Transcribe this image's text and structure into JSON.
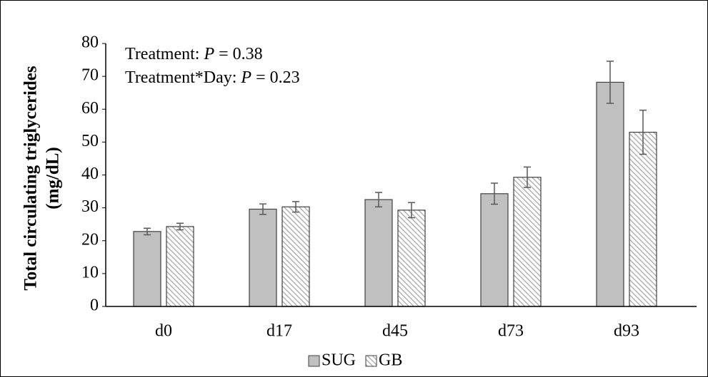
{
  "chart_data": {
    "type": "bar",
    "annotations": [
      {
        "prefix": "Treatment: ",
        "stat": "P",
        "suffix": " = 0.38"
      },
      {
        "prefix": "Treatment*Day: ",
        "stat": "P",
        "suffix": " = 0.23"
      }
    ],
    "y_label": [
      "Total circulating triglycerides",
      "(mg/dL)"
    ],
    "categories": [
      "d0",
      "d17",
      "d45",
      "d73",
      "d93"
    ],
    "series": [
      {
        "name": "SUG",
        "color": "#c0c0c0",
        "hatch": false,
        "values": [
          22.8,
          29.6,
          32.5,
          34.3,
          68.2
        ],
        "errors": [
          1.0,
          1.6,
          2.2,
          3.2,
          6.4
        ]
      },
      {
        "name": "GB",
        "color": "#a6a6a6",
        "hatch": true,
        "values": [
          24.3,
          30.3,
          29.3,
          39.3,
          53.0
        ],
        "errors": [
          1.0,
          1.6,
          2.3,
          3.1,
          6.7
        ]
      }
    ],
    "ylim": [
      0,
      80
    ],
    "yticks": [
      0,
      10,
      20,
      30,
      40,
      50,
      60,
      70,
      80
    ],
    "grid": false
  }
}
